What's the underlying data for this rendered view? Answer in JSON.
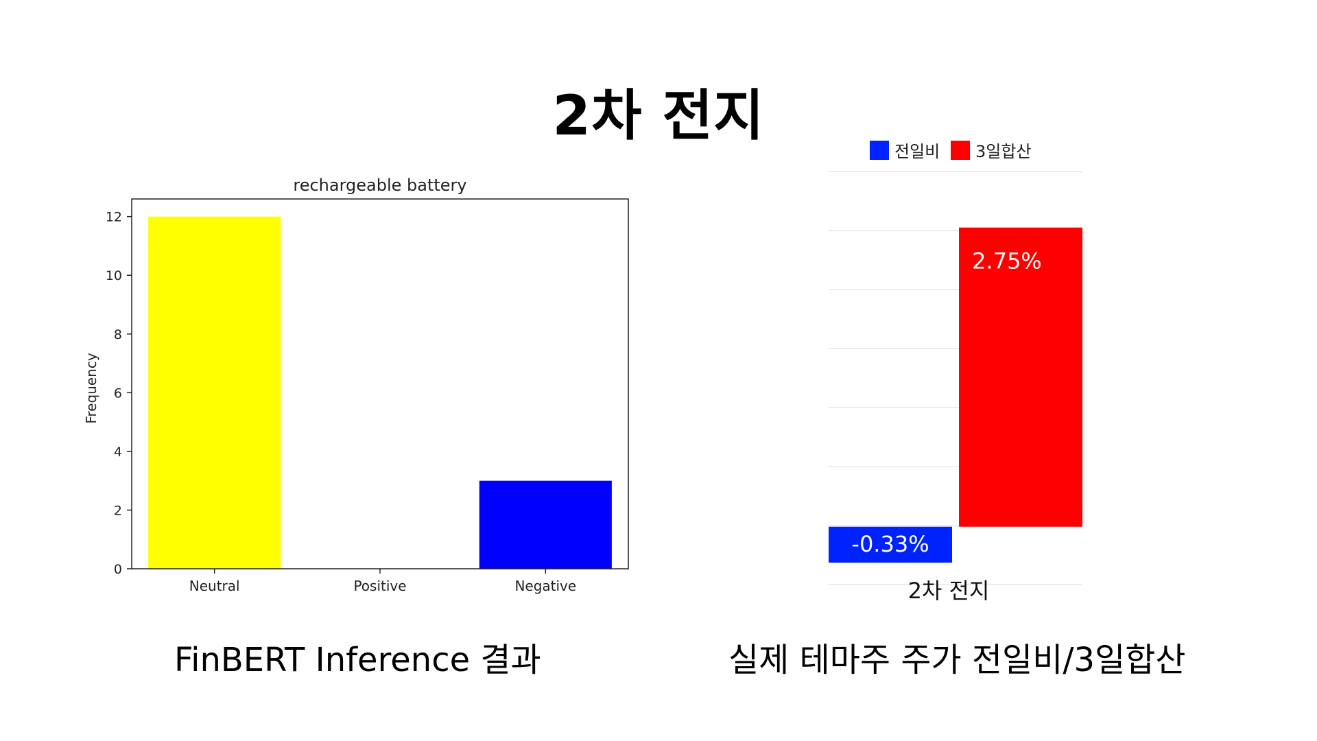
{
  "page": {
    "title": "2차 전지",
    "caption_left": "FinBERT Inference 결과",
    "caption_right": "실제 테마주 주가 전일비/3일합산"
  },
  "chart_data": [
    {
      "type": "bar",
      "title": "rechargeable battery",
      "xlabel": "",
      "ylabel": "Frequency",
      "categories": [
        "Neutral",
        "Positive",
        "Negative"
      ],
      "values": [
        12,
        0,
        3
      ],
      "colors": [
        "#ffff00",
        "#ffffff",
        "#0000ff"
      ],
      "yticks": [
        0,
        2,
        4,
        6,
        8,
        10,
        12
      ],
      "ylim": [
        0,
        12.6
      ],
      "grid": false
    },
    {
      "type": "bar",
      "title": "",
      "categories": [
        "2차 전지"
      ],
      "series": [
        {
          "name": "전일비",
          "values": [
            -0.33
          ],
          "color": "#0022ff",
          "label": "-0.33%"
        },
        {
          "name": "3일합산",
          "values": [
            2.75
          ],
          "color": "#ff0000",
          "label": "2.75%"
        }
      ],
      "ylim": [
        -0.5,
        3.0
      ],
      "grid": true,
      "legend": "top"
    }
  ]
}
